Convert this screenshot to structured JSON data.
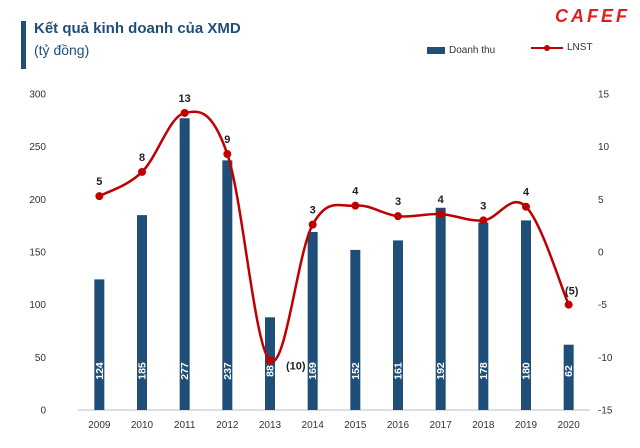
{
  "header": {
    "title": "Kết quả kinh doanh của XMD",
    "subtitle": "(tỷ đồng)",
    "logo_text": "CAFEF"
  },
  "legend": {
    "bar_label": "Doanh thu",
    "line_label": "LNST"
  },
  "colors": {
    "bar": "#1f4e79",
    "line": "#c00000",
    "logo": "#e02020"
  },
  "chart_data": {
    "type": "bar",
    "title": "Kết quả kinh doanh của XMD",
    "categories": [
      "2009",
      "2010",
      "2011",
      "2012",
      "2013",
      "2014",
      "2015",
      "2016",
      "2017",
      "2018",
      "2019",
      "2020"
    ],
    "series": [
      {
        "name": "Doanh thu",
        "type": "bar",
        "axis": "left",
        "values": [
          124,
          185,
          277,
          237,
          88,
          169,
          152,
          161,
          192,
          178,
          180,
          62
        ],
        "labels": [
          "124",
          "185",
          "277",
          "237",
          "88",
          "169",
          "152",
          "161",
          "192",
          "178",
          "180",
          "62"
        ]
      },
      {
        "name": "LNST",
        "type": "line",
        "axis": "right",
        "values": [
          5.3,
          7.6,
          13.2,
          9.3,
          -10.3,
          2.6,
          4.4,
          3.4,
          3.6,
          3.0,
          4.3,
          -5.0
        ],
        "labels": [
          "5",
          "8",
          "13",
          "9",
          "(10)",
          "3",
          "4",
          "3",
          "4",
          "3",
          "4",
          "(5)"
        ]
      }
    ],
    "y_left": {
      "min": 0,
      "max": 300,
      "ticks": [
        "0",
        "50",
        "100",
        "150",
        "200",
        "250",
        "300"
      ]
    },
    "y_right": {
      "min": -15,
      "max": 15,
      "ticks": [
        "-15",
        "-10",
        "-5",
        "0",
        "5",
        "10",
        "15"
      ]
    },
    "legend_position": "top-right",
    "grid": false
  }
}
